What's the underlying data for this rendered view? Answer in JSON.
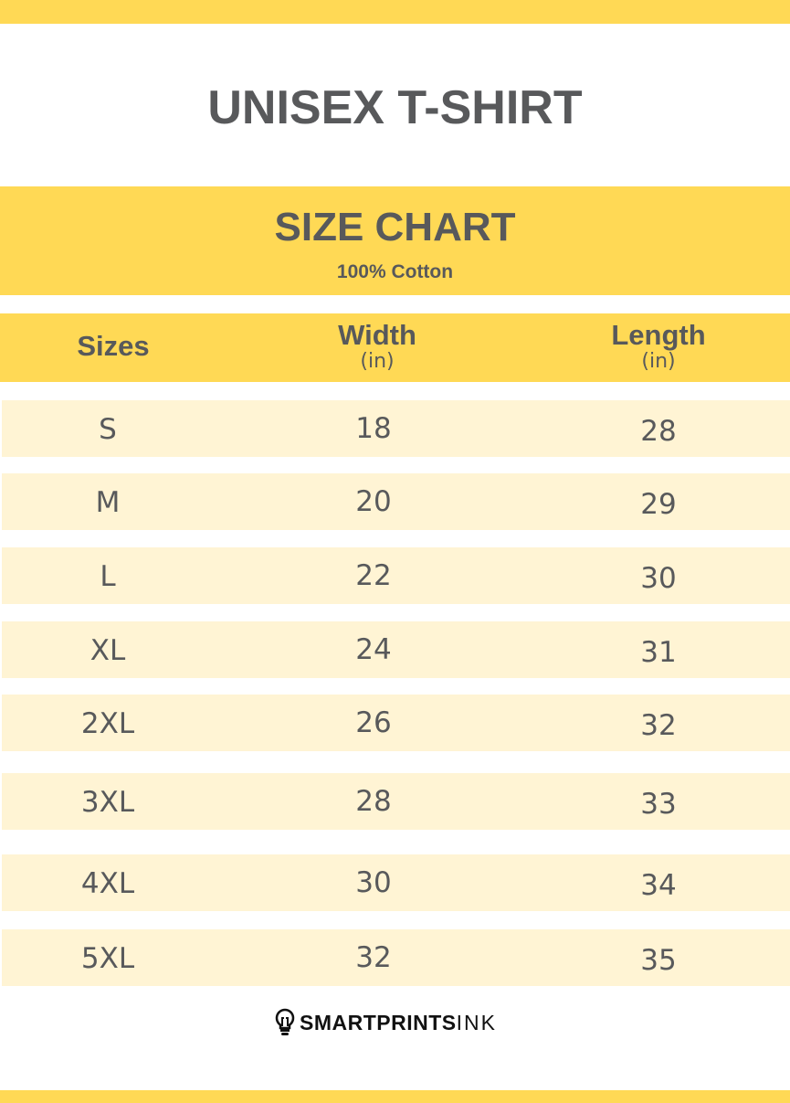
{
  "title": "UNISEX T-SHIRT",
  "subtitle": "SIZE CHART",
  "material": "100% Cotton",
  "colors": {
    "accent": "#FFD955",
    "row": "#FFF4D4",
    "text": "#58595B"
  },
  "headers": [
    {
      "label": "Sizes",
      "unit": ""
    },
    {
      "label": "Width",
      "unit": "(in)"
    },
    {
      "label": "Length",
      "unit": "(in)"
    }
  ],
  "rows": [
    {
      "size": "S",
      "width": "18",
      "length": "28"
    },
    {
      "size": "M",
      "width": "20",
      "length": "29"
    },
    {
      "size": "L",
      "width": "22",
      "length": "30"
    },
    {
      "size": "XL",
      "width": "24",
      "length": "31"
    },
    {
      "size": "2XL",
      "width": "26",
      "length": "32"
    },
    {
      "size": "3XL",
      "width": "28",
      "length": "33"
    },
    {
      "size": "4XL",
      "width": "30",
      "length": "34"
    },
    {
      "size": "5XL",
      "width": "32",
      "length": "35"
    }
  ],
  "logo": {
    "bold": "SMARTPRINTS",
    "light": "INK",
    "icon": "lightbulb-icon"
  }
}
